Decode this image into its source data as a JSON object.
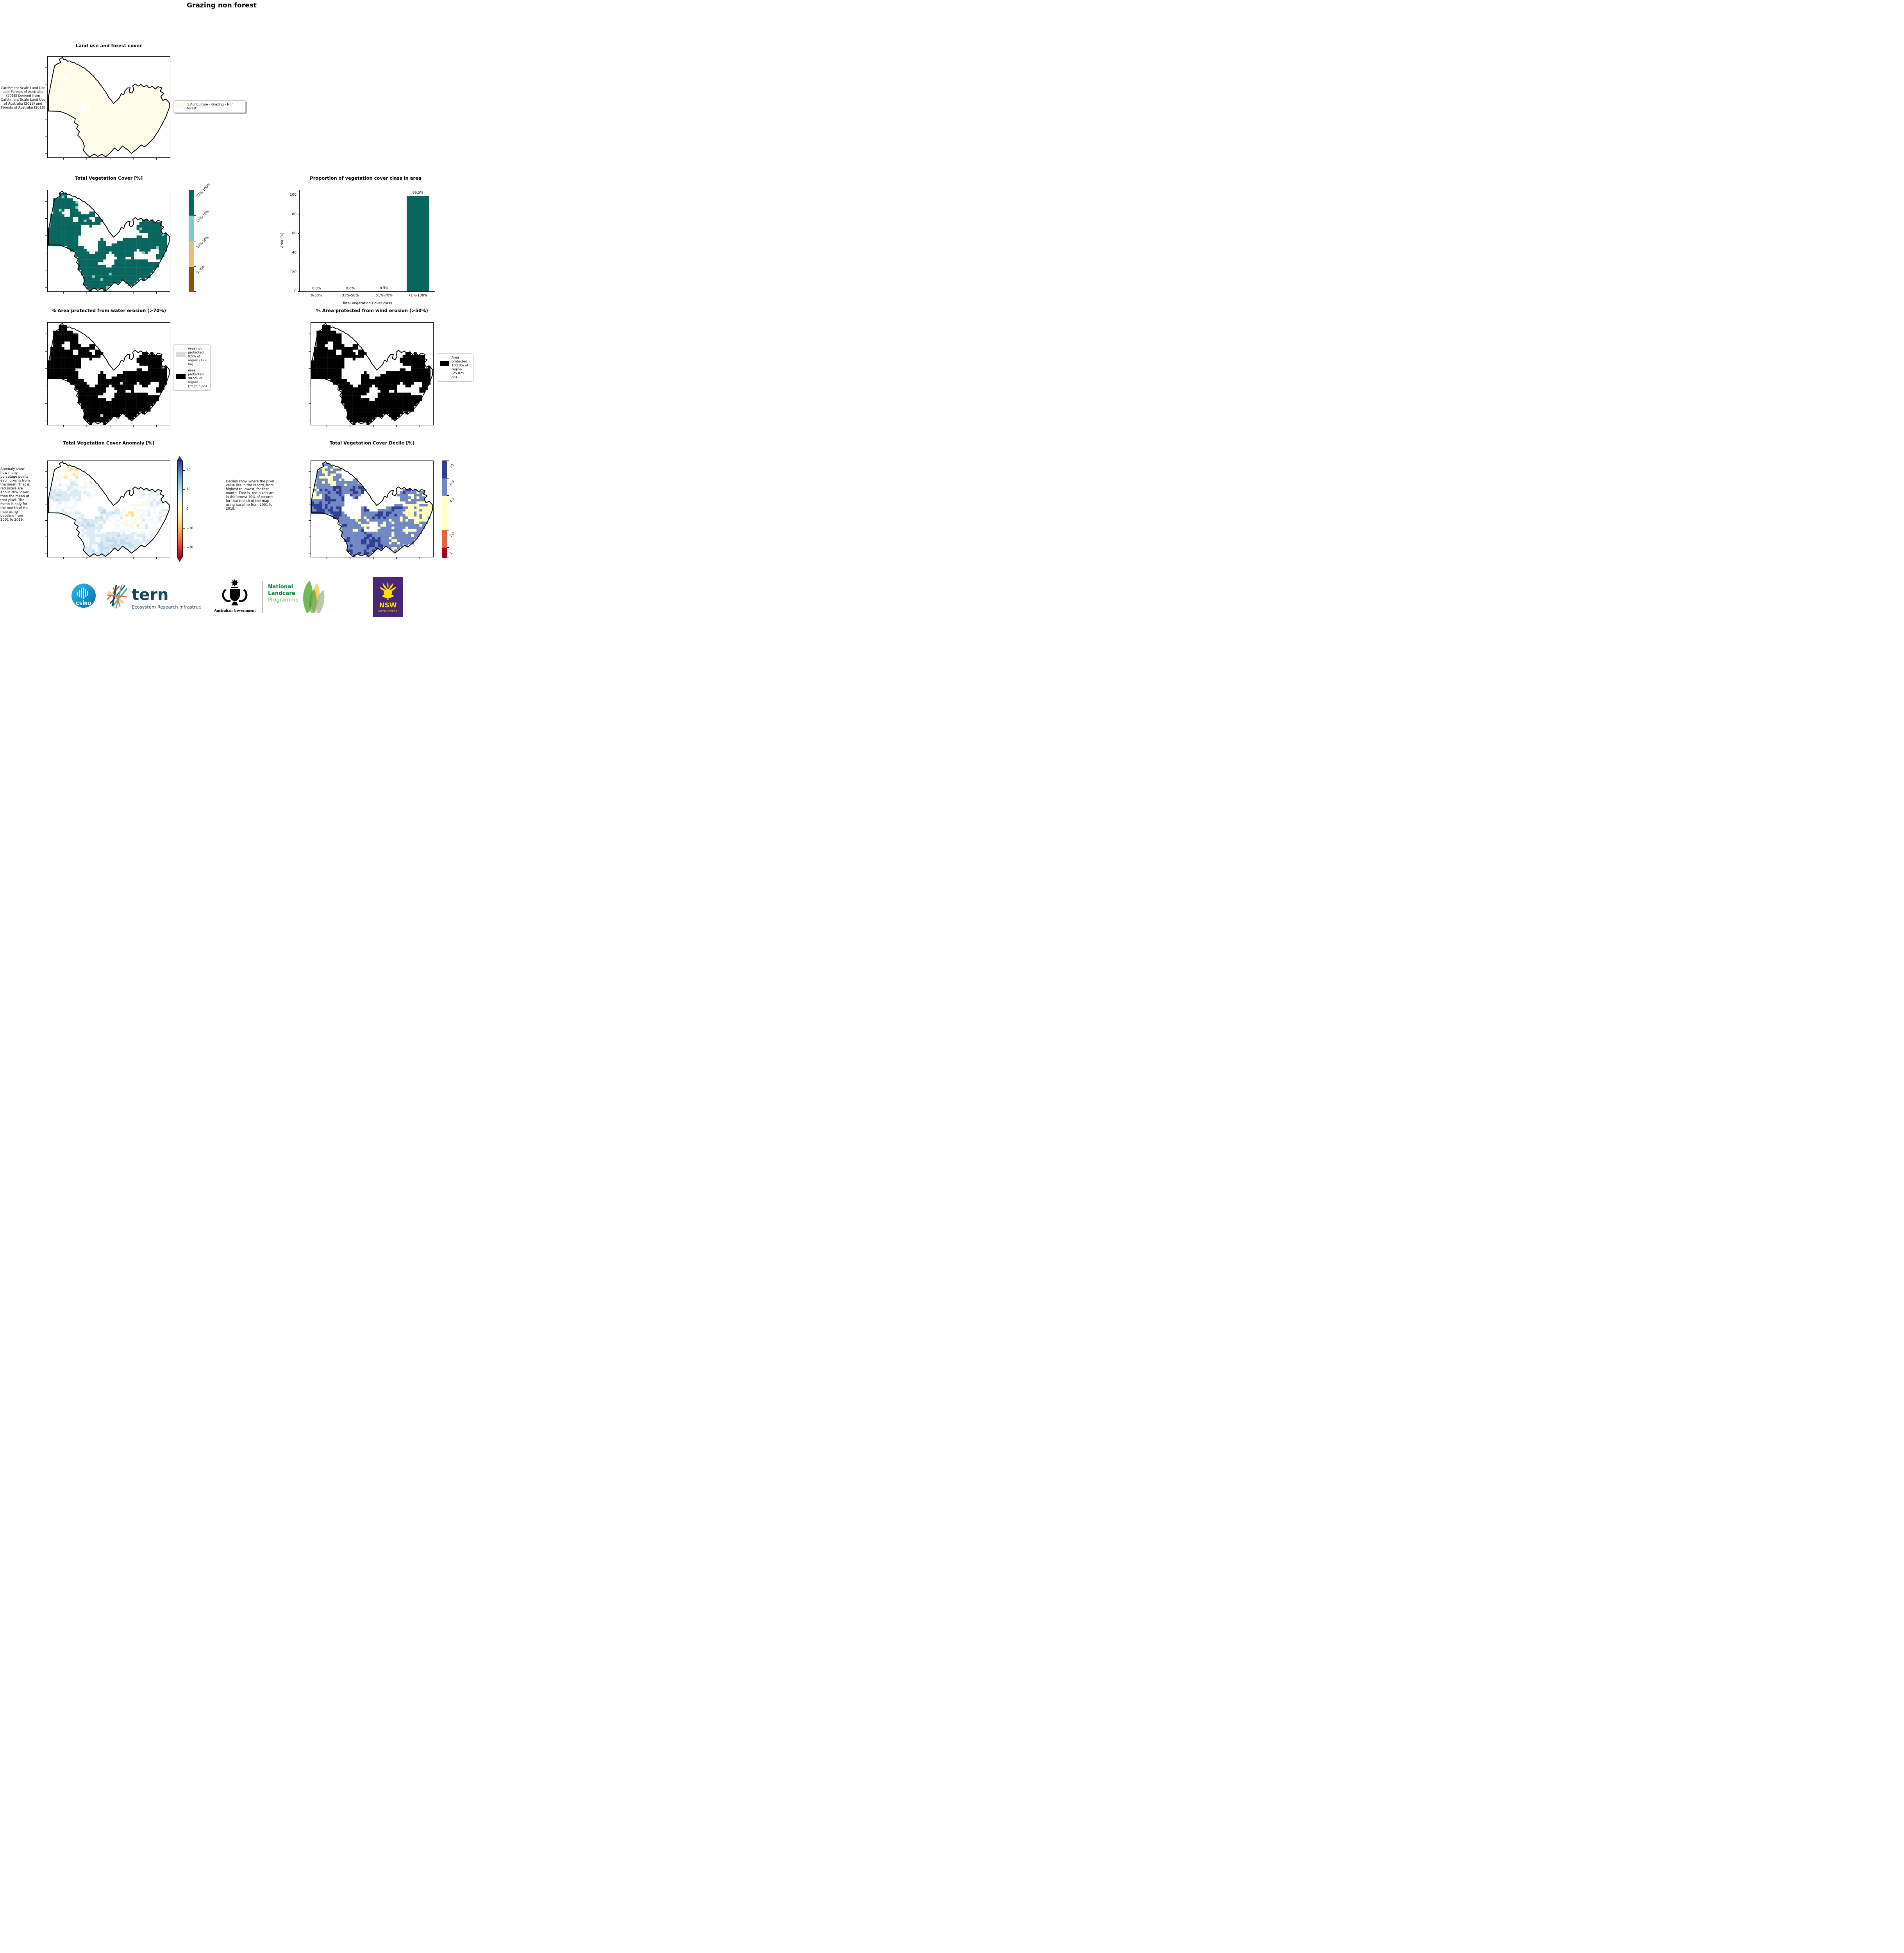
{
  "page": {
    "title": "Grazing non forest"
  },
  "panels": {
    "landuse": {
      "title": "Land use and forest cover",
      "note": "Catchment Scale Land Use and Forests of Australia (2018) Derived from Catchment Scale Land Use of Australia (2018) and Forests of Australia (2018)",
      "legend": {
        "swatch_color": "#fffde9",
        "label": "1 Agriculture - Grazing - Non forest"
      }
    },
    "vegcover": {
      "title": "Total Vegetation Cover [%]",
      "colorbar": {
        "segments": [
          {
            "label": "71%-100%",
            "color": "#07665e",
            "frac": 0.25
          },
          {
            "label": "51%-70%",
            "color": "#80cdc1",
            "frac": 0.25
          },
          {
            "label": "31%-50%",
            "color": "#dfc27d",
            "frac": 0.25
          },
          {
            "label": "0-30%",
            "color": "#8c510a",
            "frac": 0.25
          }
        ]
      }
    },
    "water": {
      "title": "% Area protected from water erosion (>70%)",
      "legend": {
        "not_protected": {
          "color": "#d9d9d9",
          "label": "Area not protected 0.5% of region (129 ha)"
        },
        "protected": {
          "color": "#000000",
          "label": "Area protected 99.5% of region (25,695 ha)"
        }
      }
    },
    "wind": {
      "title": "% Area protected from wind erosion (>50%)",
      "legend": {
        "protected": {
          "color": "#000000",
          "label": "Area protected 100.0% of region (25,825 ha)"
        }
      }
    },
    "anomaly": {
      "title": "Total Vegetation Cover Anomaly [%]",
      "note": "Anomaly show how many percetage points each pixel is from the mean. That is, red pixels are about 20% lower than the mean of that pixel. The mean is only for the month of the map using baseline from 2001 to 2019.",
      "colorbar": {
        "ticks": [
          {
            "v": 20,
            "label": "20"
          },
          {
            "v": 10,
            "label": "10"
          },
          {
            "v": 0,
            "label": "0"
          },
          {
            "v": -10,
            "label": "−10"
          },
          {
            "v": -20,
            "label": "−20"
          }
        ],
        "range": [
          -25,
          25
        ],
        "extend": "both"
      }
    },
    "decile": {
      "title": "Total Vegetation Cover Decile [%]",
      "note": "Deciles show where the pixel value lies in the record, from highest to lowest, for that month. That is, red pixels are in the lowest 10% of records for that month of the map using baseline from 2001 to 2019.",
      "colorbar": {
        "segments": [
          {
            "label": "10",
            "color": "#323e92",
            "frac": 0.18
          },
          {
            "label": "8-9",
            "color": "#7288c4",
            "frac": 0.18
          },
          {
            "label": "4-7",
            "color": "#ffffbf",
            "frac": 0.355
          },
          {
            "label": "2-3",
            "color": "#e4643c",
            "frac": 0.18
          },
          {
            "label": "1",
            "color": "#a50026",
            "frac": 0.105
          }
        ]
      }
    }
  },
  "chart_data": {
    "type": "bar",
    "title": "Proportion of vegetation cover class in area",
    "categories": [
      "0-30%",
      "31%-50%",
      "51%-70%",
      "71%-100%"
    ],
    "values": [
      0.0,
      0.0,
      0.5,
      99.5
    ],
    "value_labels": [
      "0.0%",
      "0.0%",
      "0.5%",
      "99.5%"
    ],
    "colors": [
      "#07665e",
      "#07665e",
      "#80cdc1",
      "#07665e"
    ],
    "xlabel": "Total Vegetation Cover class",
    "ylabel": "Area (%)",
    "ylim": [
      0,
      105
    ],
    "yticks": [
      0,
      20,
      40,
      60,
      80,
      100
    ],
    "grid": false,
    "legend": "none"
  },
  "maps": {
    "landuse": {
      "mask_seed": 5,
      "mask_threshold": 0.16,
      "color_seed": 11,
      "pure_random": true,
      "hole": false,
      "palette": [
        {
          "color": "#fffde9",
          "w": 1
        }
      ]
    },
    "vegcover": {
      "mask_seed": 1,
      "mask_threshold": 0.4,
      "color_seed": 21,
      "pure_random": true,
      "hole": true,
      "palette": [
        {
          "color": "#80cdc1",
          "w": 0.018
        },
        {
          "color": "#07665e",
          "w": 0.982
        }
      ]
    },
    "water": {
      "mask_seed": 1,
      "mask_threshold": 0.4,
      "color_seed": 31,
      "pure_random": true,
      "hole": true,
      "palette": [
        {
          "color": "#d9d9d9",
          "w": 0.007
        },
        {
          "color": "#000000",
          "w": 0.993
        }
      ]
    },
    "wind": {
      "mask_seed": 1,
      "mask_threshold": 0.4,
      "color_seed": 41,
      "pure_random": true,
      "hole": true,
      "palette": [
        {
          "color": "#000000",
          "w": 1
        }
      ]
    },
    "anomaly": {
      "mask_seed": 1,
      "mask_threshold": 0.34,
      "color_seed": 51,
      "pure_random": false,
      "jitter": 0.3,
      "bias": 0.3,
      "hole": true,
      "palette": [
        {
          "color": "#d73027",
          "w": 0.008
        },
        {
          "color": "#f46d43",
          "w": 0.022
        },
        {
          "color": "#fdae61",
          "w": 0.055
        },
        {
          "color": "#fee090",
          "w": 0.1
        },
        {
          "color": "#fffbd9",
          "w": 0.09
        },
        {
          "color": "#ffffff",
          "w": 0.14
        },
        {
          "color": "#f3f9fc",
          "w": 0.13
        },
        {
          "color": "#dceaf4",
          "w": 0.2
        },
        {
          "color": "#c3dcee",
          "w": 0.17
        },
        {
          "color": "#a3cbe4",
          "w": 0.06
        },
        {
          "color": "#74a9d1",
          "w": 0.02
        },
        {
          "color": "#4575b4",
          "w": 0.005
        }
      ]
    },
    "decile": {
      "mask_seed": 1,
      "mask_threshold": 0.34,
      "color_seed": 61,
      "pure_random": false,
      "jitter": 0.26,
      "bias": 0.38,
      "hole": true,
      "palette": [
        {
          "color": "#a50026",
          "w": 0.03
        },
        {
          "color": "#e4643c",
          "w": 0.07
        },
        {
          "color": "#ffffbf",
          "w": 0.27
        },
        {
          "color": "#7288c4",
          "w": 0.27
        },
        {
          "color": "#323e92",
          "w": 0.36
        }
      ]
    }
  },
  "footer": {
    "csiro": {
      "text": "CSIRO",
      "circle_color": "#0b93c8"
    },
    "tern": {
      "name": "tern",
      "tagline": "Ecosystem Research Infrastructure",
      "color": "#16455c"
    },
    "gov": {
      "text": "Australian Government"
    },
    "landcare": {
      "line1": "National",
      "line2": "Landcare",
      "line3": "Programme",
      "green": "#00853e",
      "light_green": "#6cbf4c"
    },
    "nsw": {
      "name": "NSW",
      "sub": "GOVERNMENT",
      "purple": "#482876",
      "yellow": "#ffdd00"
    }
  }
}
